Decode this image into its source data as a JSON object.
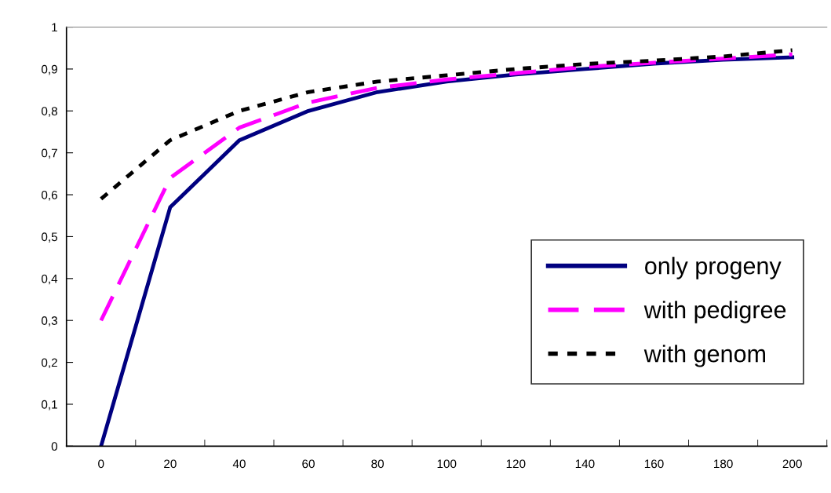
{
  "chart_data": {
    "type": "line",
    "categories": [
      "0",
      "20",
      "40",
      "60",
      "80",
      "100",
      "120",
      "140",
      "160",
      "180",
      "200"
    ],
    "series": [
      {
        "name": "only progeny",
        "color": "#000080",
        "line_style": "solid",
        "values": [
          0,
          0.57,
          0.73,
          0.8,
          0.845,
          0.87,
          0.887,
          0.9,
          0.913,
          0.922,
          0.928
        ]
      },
      {
        "name": "with pedigree",
        "color": "#ff00ff",
        "line_style": "dashed",
        "values": [
          0.3,
          0.64,
          0.76,
          0.82,
          0.855,
          0.875,
          0.89,
          0.905,
          0.915,
          0.925,
          0.935
        ]
      },
      {
        "name": "with genom",
        "color": "#000000",
        "line_style": "dotted",
        "values": [
          0.59,
          0.73,
          0.8,
          0.845,
          0.87,
          0.885,
          0.9,
          0.912,
          0.92,
          0.93,
          0.945
        ]
      }
    ],
    "ylim": [
      0,
      1
    ],
    "yticks": [
      {
        "value": 0,
        "label": "0"
      },
      {
        "value": 0.1,
        "label": "0,1"
      },
      {
        "value": 0.2,
        "label": "0,2"
      },
      {
        "value": 0.3,
        "label": "0,3"
      },
      {
        "value": 0.4,
        "label": "0,4"
      },
      {
        "value": 0.5,
        "label": "0,5"
      },
      {
        "value": 0.6,
        "label": "0,6"
      },
      {
        "value": 0.7,
        "label": "0,7"
      },
      {
        "value": 0.8,
        "label": "0,8"
      },
      {
        "value": 0.9,
        "label": "0,9"
      },
      {
        "value": 1,
        "label": "1"
      }
    ],
    "grid": false,
    "legend": "bottom right",
    "marker": "none"
  }
}
